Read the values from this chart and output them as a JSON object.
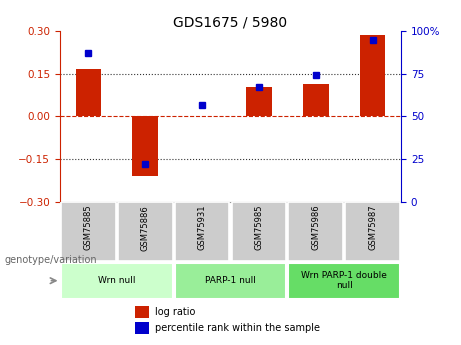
{
  "title": "GDS1675 / 5980",
  "samples": [
    "GSM75885",
    "GSM75886",
    "GSM75931",
    "GSM75985",
    "GSM75986",
    "GSM75987"
  ],
  "log_ratio": [
    0.165,
    -0.21,
    0.0,
    0.105,
    0.115,
    0.285
  ],
  "percentile_rank": [
    87,
    22,
    57,
    67,
    74,
    95
  ],
  "ylim_left": [
    -0.3,
    0.3
  ],
  "ylim_right": [
    0,
    100
  ],
  "yticks_left": [
    -0.3,
    -0.15,
    0,
    0.15,
    0.3
  ],
  "yticks_right": [
    0,
    25,
    50,
    75,
    100
  ],
  "bar_color": "#cc2200",
  "dot_color": "#0000cc",
  "bar_width": 0.45,
  "groups": [
    {
      "label": "Wrn null",
      "samples": [
        "GSM75885",
        "GSM75886"
      ],
      "color": "#ccffcc"
    },
    {
      "label": "PARP-1 null",
      "samples": [
        "GSM75931",
        "GSM75985"
      ],
      "color": "#99ee99"
    },
    {
      "label": "Wrn PARP-1 double\nnull",
      "samples": [
        "GSM75986",
        "GSM75987"
      ],
      "color": "#66dd66"
    }
  ],
  "title_fontsize": 10,
  "tick_fontsize": 7.5,
  "legend_label_ratio": "log ratio",
  "legend_label_percentile": "percentile rank within the sample",
  "genotype_label": "genotype/variation",
  "background_plot": "#ffffff",
  "background_sample_label": "#cccccc",
  "hline_zero_color": "#cc2200",
  "hline_dotted_color": "#333333"
}
